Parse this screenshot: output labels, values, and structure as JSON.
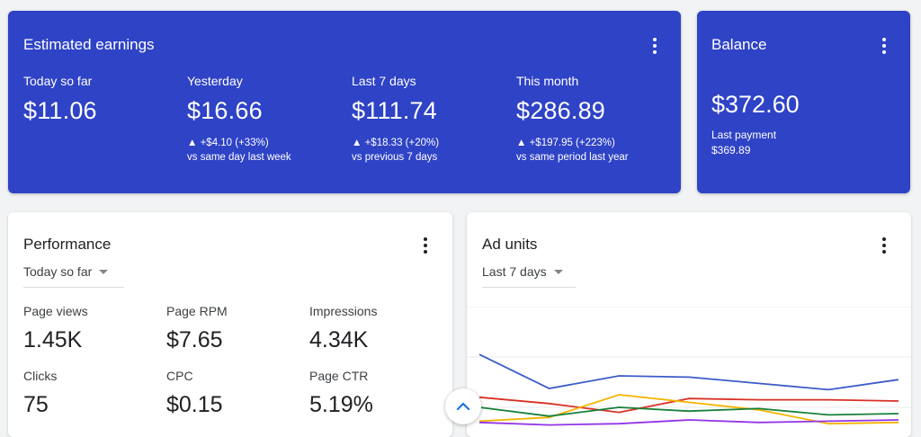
{
  "earnings": {
    "title": "Estimated earnings",
    "metrics": [
      {
        "label": "Today so far",
        "value": "$11.06",
        "change": "",
        "compare": ""
      },
      {
        "label": "Yesterday",
        "value": "$16.66",
        "change": "▲ +$4.10 (+33%)",
        "compare": "vs same day last week"
      },
      {
        "label": "Last 7 days",
        "value": "$111.74",
        "change": "▲ +$18.33 (+20%)",
        "compare": "vs previous 7 days"
      },
      {
        "label": "This month",
        "value": "$286.89",
        "change": "▲ +$197.95 (+223%)",
        "compare": "vs same period last year"
      }
    ]
  },
  "balance": {
    "title": "Balance",
    "value": "$372.60",
    "last_payment_label": "Last payment",
    "last_payment_value": "$369.89"
  },
  "performance": {
    "title": "Performance",
    "range": "Today so far",
    "metrics": [
      {
        "label": "Page views",
        "value": "1.45K"
      },
      {
        "label": "Page RPM",
        "value": "$7.65"
      },
      {
        "label": "Impressions",
        "value": "4.34K"
      },
      {
        "label": "Clicks",
        "value": "75"
      },
      {
        "label": "CPC",
        "value": "$0.15"
      },
      {
        "label": "Page CTR",
        "value": "5.19%"
      }
    ]
  },
  "adunits": {
    "title": "Ad units",
    "range": "Last 7 days"
  },
  "icons": {
    "more": "more-vert-icon",
    "caret": "arrow-drop-down-icon",
    "scroll": "chevron-up-icon"
  },
  "colors": {
    "card_blue": "#2f43c6",
    "accent": "#1a73e8"
  },
  "chart_data": {
    "type": "line",
    "x": [
      1,
      2,
      3,
      4,
      5,
      6,
      7
    ],
    "ylim": [
      0,
      100
    ],
    "grid": true,
    "series": [
      {
        "color": "#3c5bc9",
        "values": [
          62,
          35,
          45,
          44,
          39,
          34,
          42
        ]
      },
      {
        "color": "#d93025",
        "values": [
          28,
          23,
          16,
          27,
          26,
          26,
          25
        ]
      },
      {
        "color": "#f4b400",
        "values": [
          9,
          12,
          30,
          24,
          18,
          7,
          8
        ]
      },
      {
        "color": "#188038",
        "values": [
          20,
          13,
          20,
          17,
          19,
          14,
          15
        ]
      },
      {
        "color": "#9334e6",
        "values": [
          8,
          6,
          7,
          10,
          8,
          9,
          10
        ]
      }
    ]
  }
}
